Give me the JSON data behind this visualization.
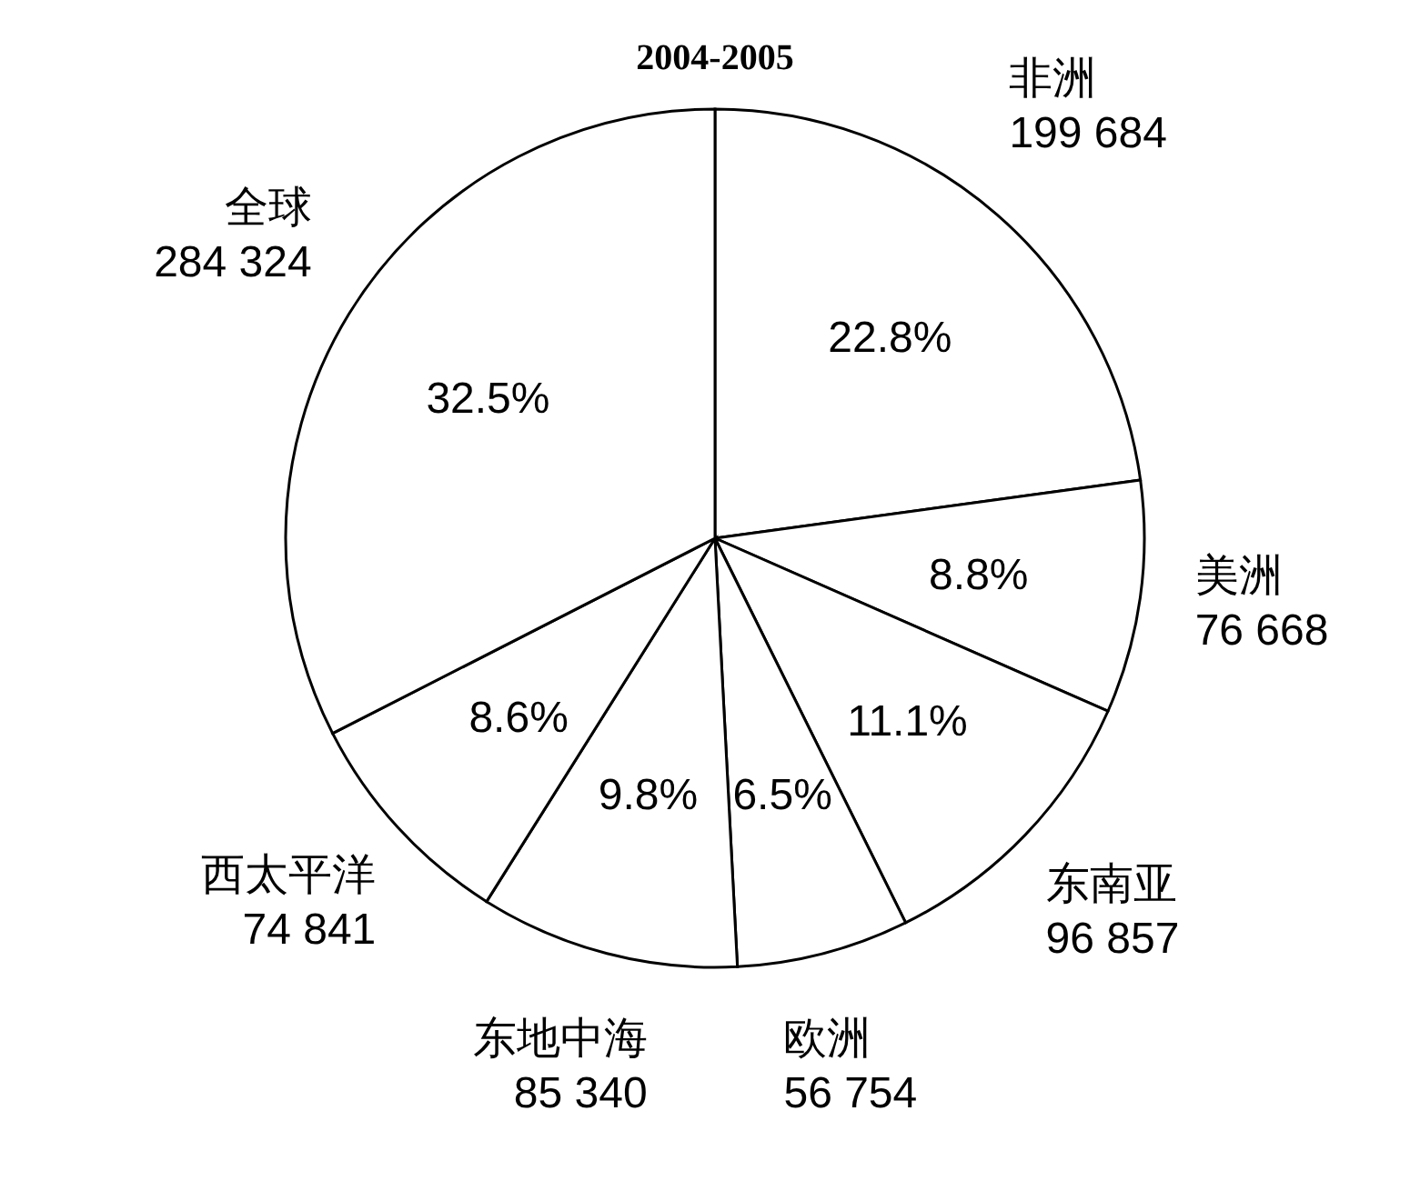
{
  "chart_data": {
    "type": "pie",
    "title": "2004-2005",
    "categories": [
      "非洲",
      "美洲",
      "东南亚",
      "欧洲",
      "东地中海",
      "西太平洋",
      "全球"
    ],
    "values": [
      199684,
      76668,
      96857,
      56754,
      85340,
      74841,
      284324
    ],
    "value_labels": [
      "199 684",
      "76 668",
      "96 857",
      "56 754",
      "85 340",
      "74 841",
      "284 324"
    ],
    "annotations": [
      {
        "text": "22.8%",
        "x": "非洲"
      },
      {
        "text": "8.8%",
        "x": "美洲"
      },
      {
        "text": "11.1%",
        "x": "东南亚"
      },
      {
        "text": "6.5%",
        "x": "欧洲"
      },
      {
        "text": "9.8%",
        "x": "东地中海"
      },
      {
        "text": "8.6%",
        "x": "西太平洋"
      },
      {
        "text": "32.5%",
        "x": "全球"
      }
    ],
    "colors": [
      "#ffffff",
      "#ffffff",
      "#ffffff",
      "#ffffff",
      "#ffffff",
      "#ffffff",
      "#ffffff"
    ],
    "legend": false
  }
}
